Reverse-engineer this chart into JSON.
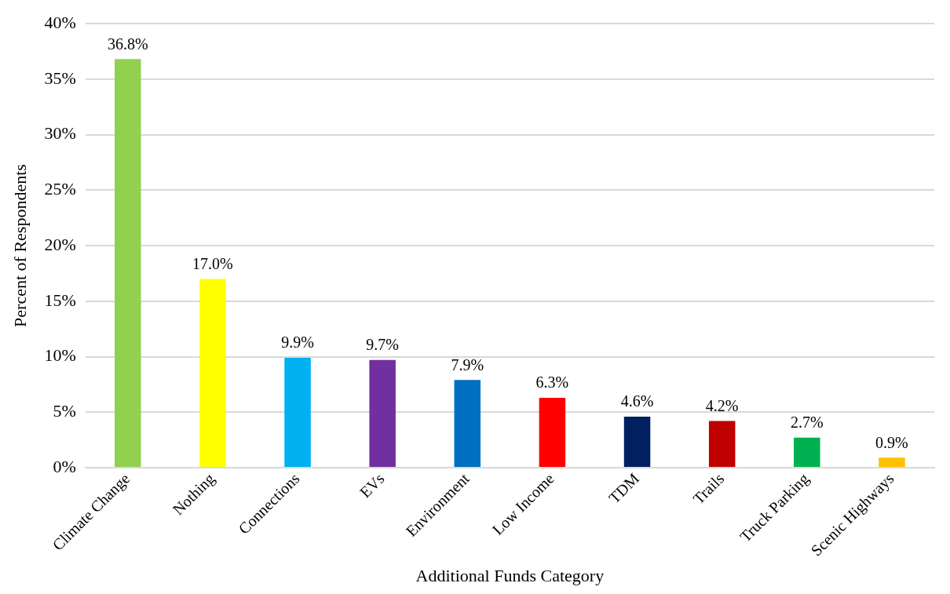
{
  "chart_data": {
    "type": "bar",
    "xlabel": "Additional Funds Category",
    "ylabel": "Percent of Respondents",
    "categories": [
      "Climate Change",
      "Nothing",
      "Connections",
      "EVs",
      "Environment",
      "Low Income",
      "TDM",
      "Trails",
      "Truck Parking",
      "Scenic Highways"
    ],
    "values": [
      36.8,
      17.0,
      9.9,
      9.7,
      7.9,
      6.3,
      4.6,
      4.2,
      2.7,
      0.9
    ],
    "colors": [
      "#92d050",
      "#ffff00",
      "#00b0f0",
      "#7030a0",
      "#0070c0",
      "#ff0000",
      "#002060",
      "#c00000",
      "#00b050",
      "#ffc000"
    ],
    "value_labels": [
      "36.8%",
      "17.0%",
      "9.9%",
      "9.7%",
      "7.9%",
      "6.3%",
      "4.6%",
      "4.2%",
      "2.7%",
      "0.9%"
    ],
    "ylim": [
      0,
      40
    ],
    "yticks": [
      {
        "value": 0,
        "label": "0%"
      },
      {
        "value": 5,
        "label": "5%"
      },
      {
        "value": 10,
        "label": "10%"
      },
      {
        "value": 15,
        "label": "15%"
      },
      {
        "value": 20,
        "label": "20%"
      },
      {
        "value": 25,
        "label": "25%"
      },
      {
        "value": 30,
        "label": "30%"
      },
      {
        "value": 35,
        "label": "35%"
      },
      {
        "value": 40,
        "label": "40%"
      }
    ],
    "grid": "y",
    "legend": false
  }
}
